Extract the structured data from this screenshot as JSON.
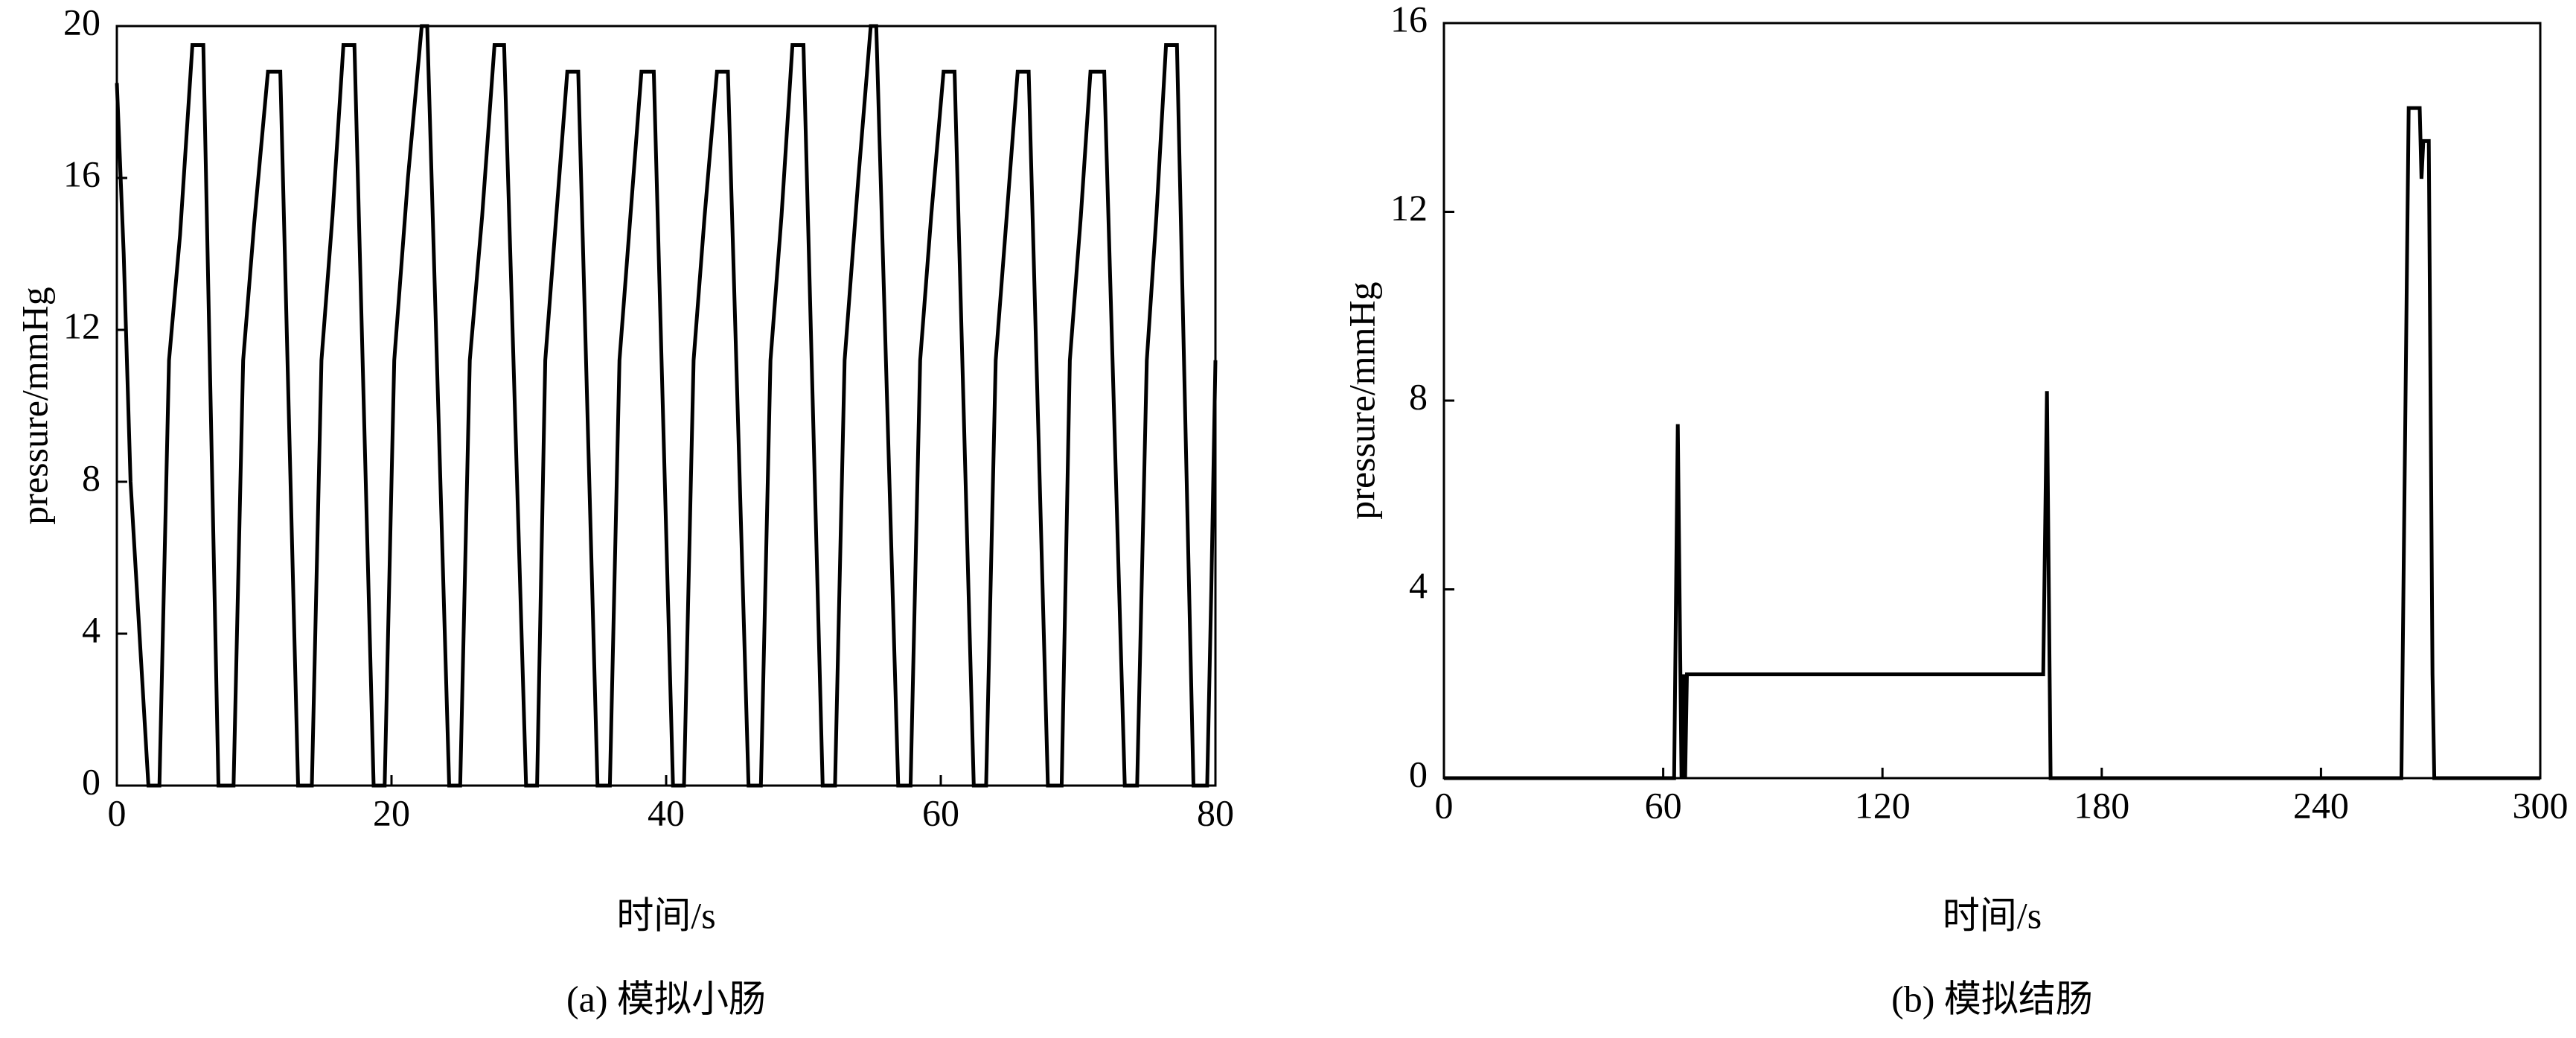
{
  "chart_data": [
    {
      "type": "line",
      "ylabel": "pressure/mmHg",
      "xlabel": "时间/s",
      "caption": "(a) 模拟小肠",
      "color": "#000000",
      "xlim": [
        0,
        80
      ],
      "xticks": [
        0,
        20,
        40,
        60,
        80
      ],
      "ylim": [
        0,
        20
      ],
      "yticks": [
        0,
        4,
        8,
        12,
        16,
        20
      ],
      "x": [
        0,
        0.5,
        1,
        2.3,
        3.1,
        3.8,
        4.6,
        5.5,
        6.3,
        7.4,
        8.5,
        9.2,
        10,
        11,
        11.9,
        13.2,
        14.2,
        14.9,
        15.7,
        16.5,
        17.3,
        18.7,
        19.5,
        20.2,
        21.2,
        22.2,
        22.6,
        24.2,
        25,
        25.7,
        26.6,
        27.5,
        28.2,
        29.8,
        30.6,
        31.2,
        32,
        32.8,
        33.6,
        35,
        35.9,
        36.6,
        37.4,
        38.2,
        39.1,
        40.5,
        41.3,
        42,
        42.8,
        43.7,
        44.5,
        46,
        46.9,
        47.6,
        48.4,
        49.2,
        50,
        51.4,
        52.3,
        53,
        54,
        54.9,
        55.3,
        56.9,
        57.8,
        58.5,
        59.3,
        60.2,
        61,
        62.4,
        63.3,
        64,
        64.8,
        65.6,
        66.4,
        67.8,
        68.8,
        69.4,
        70.2,
        70.9,
        71.9,
        73.4,
        74.3,
        75,
        75.7,
        76.4,
        77.2,
        78.4,
        79.4,
        79.7,
        80
      ],
      "values": [
        18.5,
        14,
        8,
        0,
        0,
        11.2,
        14.5,
        19.5,
        19.5,
        0,
        0,
        11.2,
        14.8,
        18.8,
        18.8,
        0,
        0,
        11.2,
        15,
        19.5,
        19.5,
        0,
        0,
        11.2,
        16,
        20,
        20,
        0,
        0,
        11.2,
        15,
        19.5,
        19.5,
        0,
        0,
        11.2,
        15,
        18.8,
        18.8,
        0,
        0,
        11.2,
        15,
        18.8,
        18.8,
        0,
        0,
        11.2,
        15,
        18.8,
        18.8,
        0,
        0,
        11.2,
        15,
        19.5,
        19.5,
        0,
        0,
        11.2,
        16,
        20,
        20,
        0,
        0,
        11.2,
        15,
        18.8,
        18.8,
        0,
        0,
        11.2,
        15,
        18.8,
        18.8,
        0,
        0,
        11.2,
        15,
        18.8,
        18.8,
        0,
        0,
        11.2,
        15,
        19.5,
        19.5,
        0,
        0,
        5.2,
        11.2
      ]
    },
    {
      "type": "line",
      "ylabel": "pressure/mmHg",
      "xlabel": "时间/s",
      "caption": "(b) 模拟结肠",
      "color": "#000000",
      "xlim": [
        0,
        300
      ],
      "xticks": [
        0,
        60,
        120,
        180,
        240,
        300
      ],
      "ylim": [
        0,
        16
      ],
      "yticks": [
        0,
        4,
        8,
        12,
        16
      ],
      "x": [
        0,
        63,
        64,
        65,
        65.5,
        66,
        66.5,
        164,
        165,
        166,
        262,
        264,
        267,
        267.5,
        268,
        269.5,
        270.5,
        271,
        300
      ],
      "values": [
        0,
        0,
        7.5,
        0,
        2.2,
        0,
        2.2,
        2.2,
        8.2,
        0,
        0,
        14.2,
        14.2,
        12.7,
        13.5,
        13.5,
        2.2,
        0,
        0
      ]
    }
  ]
}
